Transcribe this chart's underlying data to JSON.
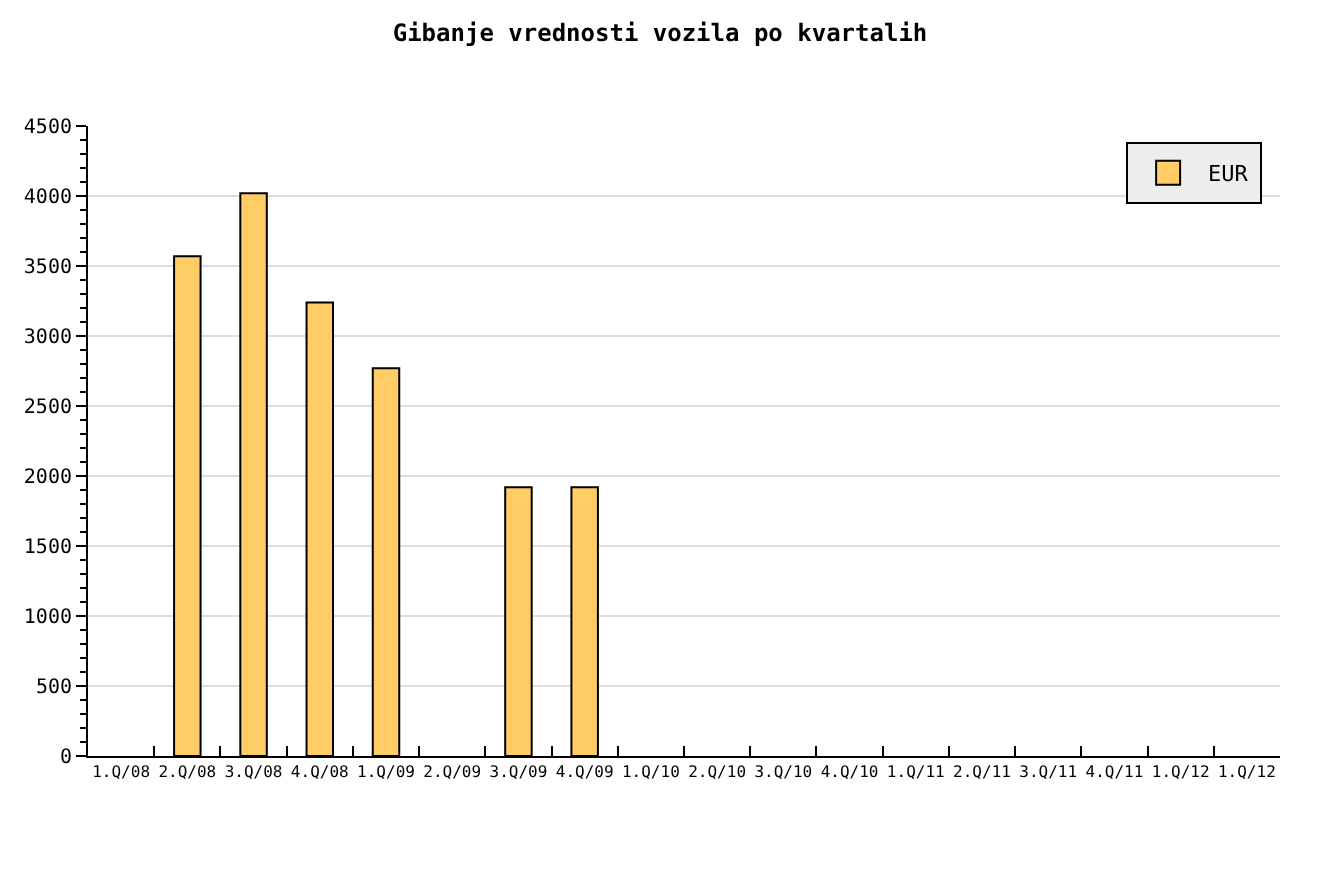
{
  "chart_data": {
    "type": "bar",
    "title": "Gibanje vrednosti vozila po kvartalih",
    "categories": [
      "1.Q/08",
      "2.Q/08",
      "3.Q/08",
      "4.Q/08",
      "1.Q/09",
      "2.Q/09",
      "3.Q/09",
      "4.Q/09",
      "1.Q/10",
      "2.Q/10",
      "3.Q/10",
      "4.Q/10",
      "1.Q/11",
      "2.Q/11",
      "3.Q/11",
      "4.Q/11",
      "1.Q/12",
      "1.Q/12"
    ],
    "series": [
      {
        "name": "EUR",
        "color": "#ffcc66",
        "values": [
          null,
          3570,
          4020,
          3240,
          2770,
          null,
          1920,
          1920,
          null,
          null,
          null,
          null,
          null,
          null,
          null,
          null,
          null,
          null
        ]
      }
    ],
    "ylim": [
      0,
      4500
    ],
    "yticks": [
      0,
      500,
      1000,
      1500,
      2000,
      2500,
      3000,
      3500,
      4000,
      4500
    ],
    "grid": "y",
    "legend": "top right"
  }
}
